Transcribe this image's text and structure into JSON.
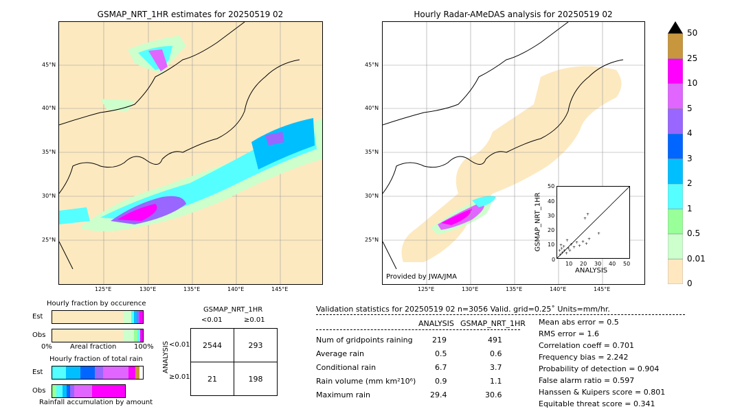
{
  "left_map": {
    "title": "GSMAP_NRT_1HR estimates for 20250519 02",
    "lat_labels": [
      "45°N",
      "40°N",
      "35°N",
      "30°N",
      "25°N"
    ],
    "lon_labels": [
      "125°E",
      "130°E",
      "135°E",
      "140°E",
      "145°E"
    ]
  },
  "right_map": {
    "title": "Hourly Radar-AMeDAS analysis for 20250519 02",
    "credit": "Provided by JWA/JMA",
    "lat_labels": [
      "45°N",
      "40°N",
      "35°N",
      "30°N",
      "25°N"
    ],
    "lon_labels": [
      "125°E",
      "130°E",
      "135°E",
      "140°E",
      "145°E"
    ]
  },
  "scatter": {
    "ylabel": "GSMAP_NRT_1HR",
    "xlabel": "ANALYSIS",
    "ticks": [
      "0",
      "10",
      "20",
      "30",
      "40",
      "50"
    ]
  },
  "colorbar": {
    "labels": [
      "50",
      "25",
      "10",
      "5",
      "4",
      "3",
      "2",
      "1",
      "0.5",
      "0.01",
      "0"
    ],
    "colors": [
      "#c8963c",
      "#ff00ff",
      "#e066ff",
      "#9966ff",
      "#0066ff",
      "#00bfff",
      "#55ffff",
      "#99ff99",
      "#ccffcc",
      "#ffe8c0"
    ]
  },
  "fraction_occurrence": {
    "title": "Hourly fraction by occurence",
    "est_label": "Est",
    "obs_label": "Obs",
    "axis_left": "0%",
    "axis_mid": "Areal fraction",
    "axis_right": "100%"
  },
  "fraction_total": {
    "title": "Hourly fraction of total rain",
    "est_label": "Est",
    "obs_label": "Obs",
    "footer": "Rainfall accumulation by amount"
  },
  "contingency": {
    "title": "GSMAP_NRT_1HR",
    "col1": "<0.01",
    "col2": "≥0.01",
    "row_axis": "ANALYSIS",
    "row1": "<0.01",
    "row2": "≥0.01",
    "cells": [
      "2544",
      "293",
      "21",
      "198"
    ]
  },
  "validation": {
    "header": "Validation statistics for 20250519 02  n=3056 Valid. grid=0.25˚ Units=mm/hr.",
    "col_a": "ANALYSIS",
    "col_b": "GSMAP_NRT_1HR",
    "rows": [
      {
        "label": "Num of gridpoints raining",
        "a": "219",
        "b": "491"
      },
      {
        "label": "Average rain",
        "a": "0.5",
        "b": "0.6"
      },
      {
        "label": "Conditional rain",
        "a": "6.7",
        "b": "3.7"
      },
      {
        "label": "Rain volume (mm km²10⁶)",
        "a": "0.9",
        "b": "1.1"
      },
      {
        "label": "Maximum rain",
        "a": "29.4",
        "b": "30.6"
      }
    ],
    "scores": [
      "Mean abs error =    0.5",
      "RMS error =    1.6",
      "Correlation coeff =  0.701",
      "Frequency bias =  2.242",
      "Probability of detection =  0.904",
      "False alarm ratio =  0.597",
      "Hanssen & Kuipers score =  0.801",
      "Equitable threat score =  0.341"
    ]
  }
}
